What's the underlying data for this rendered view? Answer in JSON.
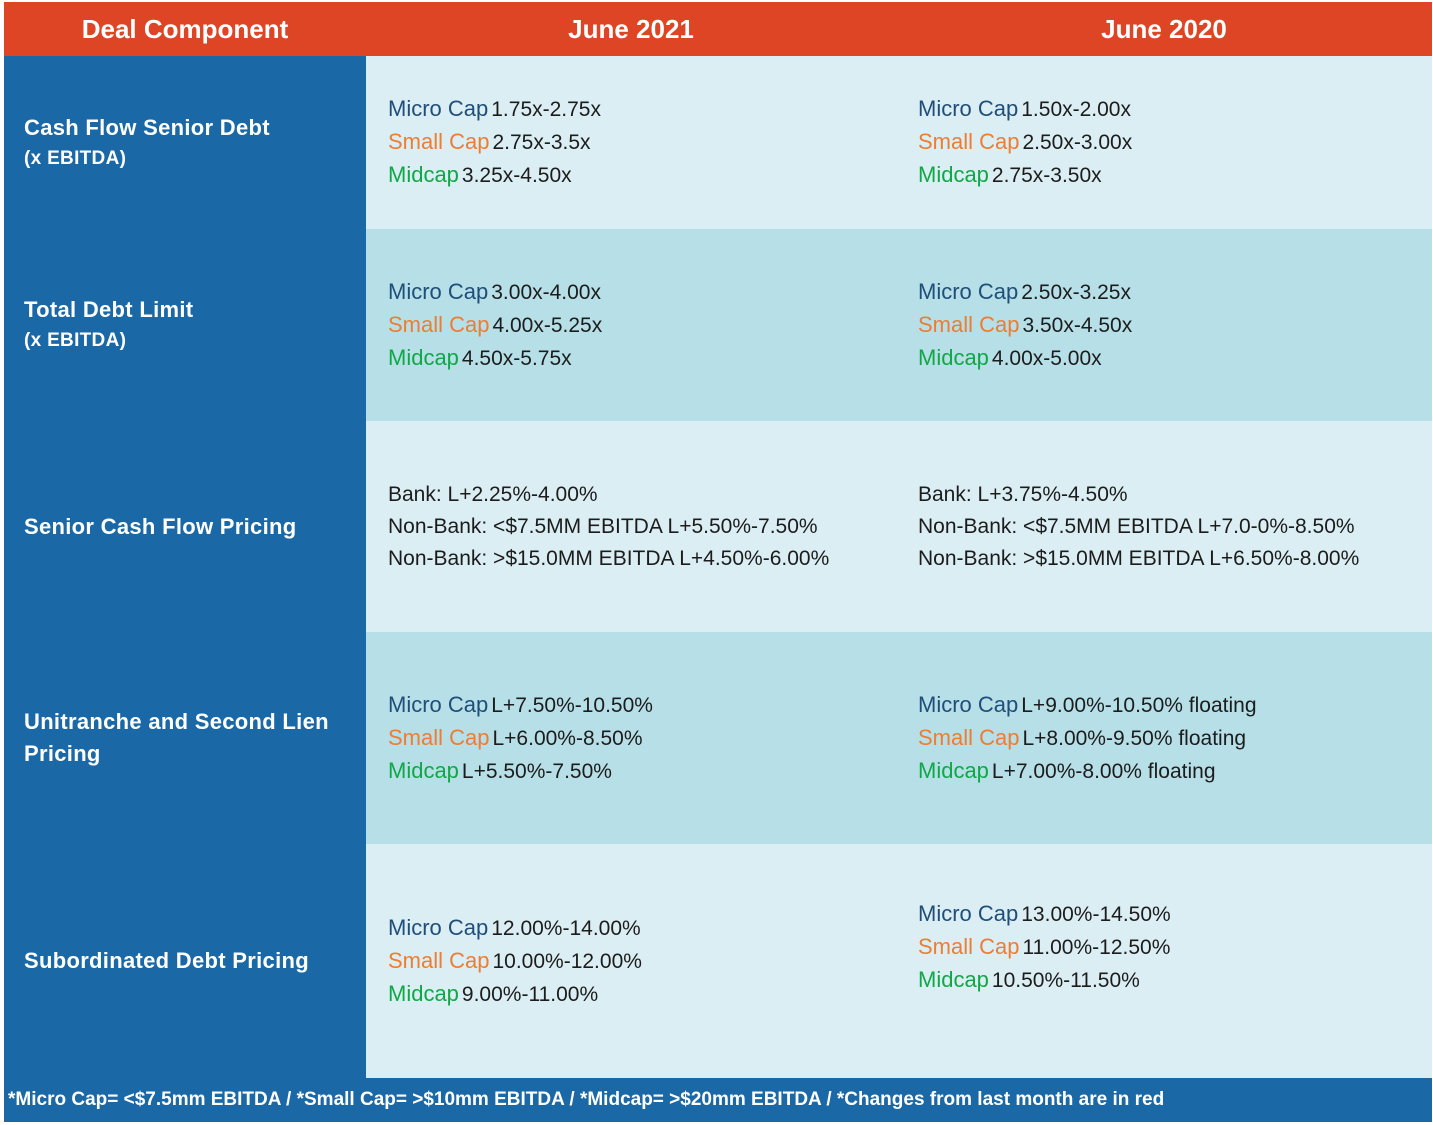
{
  "header": {
    "col0": "Deal Component",
    "col1": "June 2021",
    "col2": "June 2020"
  },
  "rows": [
    {
      "label": "Cash Flow Senior Debt",
      "sublabel": "(x EBITDA)",
      "june2021": {
        "micro_label": "Micro Cap",
        "micro": "1.75x-2.75x",
        "small_label": "Small Cap",
        "small": "2.75x-3.5x",
        "mid_label": "Midcap",
        "mid": "3.25x-4.50x"
      },
      "june2020": {
        "micro_label": "Micro Cap",
        "micro": "1.50x-2.00x",
        "small_label": "Small Cap",
        "small": "2.50x-3.00x",
        "mid_label": "Midcap",
        "mid": "2.75x-3.50x"
      }
    },
    {
      "label": "Total Debt Limit",
      "sublabel": "(x EBITDA)",
      "june2021": {
        "micro_label": "Micro Cap",
        "micro": "3.00x-4.00x",
        "small_label": "Small Cap",
        "small": "4.00x-5.25x",
        "mid_label": "Midcap",
        "mid": "4.50x-5.75x"
      },
      "june2020": {
        "micro_label": "Micro Cap",
        "micro": "2.50x-3.25x",
        "small_label": "Small Cap",
        "small": "3.50x-4.50x",
        "mid_label": "Midcap",
        "mid": "4.00x-5.00x"
      }
    },
    {
      "label": "Senior Cash Flow Pricing",
      "june2021": {
        "line1": "Bank: L+2.25%-4.00%",
        "line2": "Non-Bank: <$7.5MM EBITDA L+5.50%-7.50%",
        "line3": "Non-Bank: >$15.0MM EBITDA L+4.50%-6.00%"
      },
      "june2020": {
        "line1": "Bank: L+3.75%-4.50%",
        "line2": "Non-Bank: <$7.5MM EBITDA L+7.0-0%-8.50%",
        "line3": "Non-Bank: >$15.0MM EBITDA L+6.50%-8.00%"
      }
    },
    {
      "label": "Unitranche and Second Lien",
      "sublabel": "Pricing",
      "june2021": {
        "micro_label": "Micro Cap",
        "micro": "L+7.50%-10.50%",
        "small_label": "Small Cap",
        "small": "L+6.00%-8.50%",
        "mid_label": "Midcap",
        "mid": "L+5.50%-7.50%"
      },
      "june2020": {
        "micro_label": "Micro Cap",
        "micro": "L+9.00%-10.50% floating",
        "small_label": "Small Cap",
        "small": "L+8.00%-9.50% floating",
        "mid_label": "Midcap",
        "mid": "L+7.00%-8.00% floating"
      }
    },
    {
      "label": "Subordinated Debt Pricing",
      "june2021": {
        "micro_label": "Micro Cap",
        "micro": "12.00%-14.00%",
        "small_label": "Small Cap",
        "small": "10.00%-12.00%",
        "mid_label": "Midcap",
        "mid": "9.00%-11.00%"
      },
      "june2020": {
        "micro_label": "Micro Cap",
        "micro": "13.00%-14.50%",
        "small_label": "Small Cap",
        "small": "11.00%-12.50%",
        "mid_label": "Midcap",
        "mid": "10.50%-11.50%"
      }
    }
  ],
  "footer": "*Micro Cap= <$7.5mm EBITDA / *Small Cap= >$10mm EBITDA / *Midcap= >$20mm EBITDA / *Changes from last month are in red",
  "colors": {
    "header_bg": "#de4524",
    "label_bg": "#1b68a6",
    "row_light": "#dbeef4",
    "row_dark": "#b6dfe7",
    "micro_cap": "#1f4e79",
    "small_cap": "#ee7d31",
    "midcap": "#10a846"
  }
}
